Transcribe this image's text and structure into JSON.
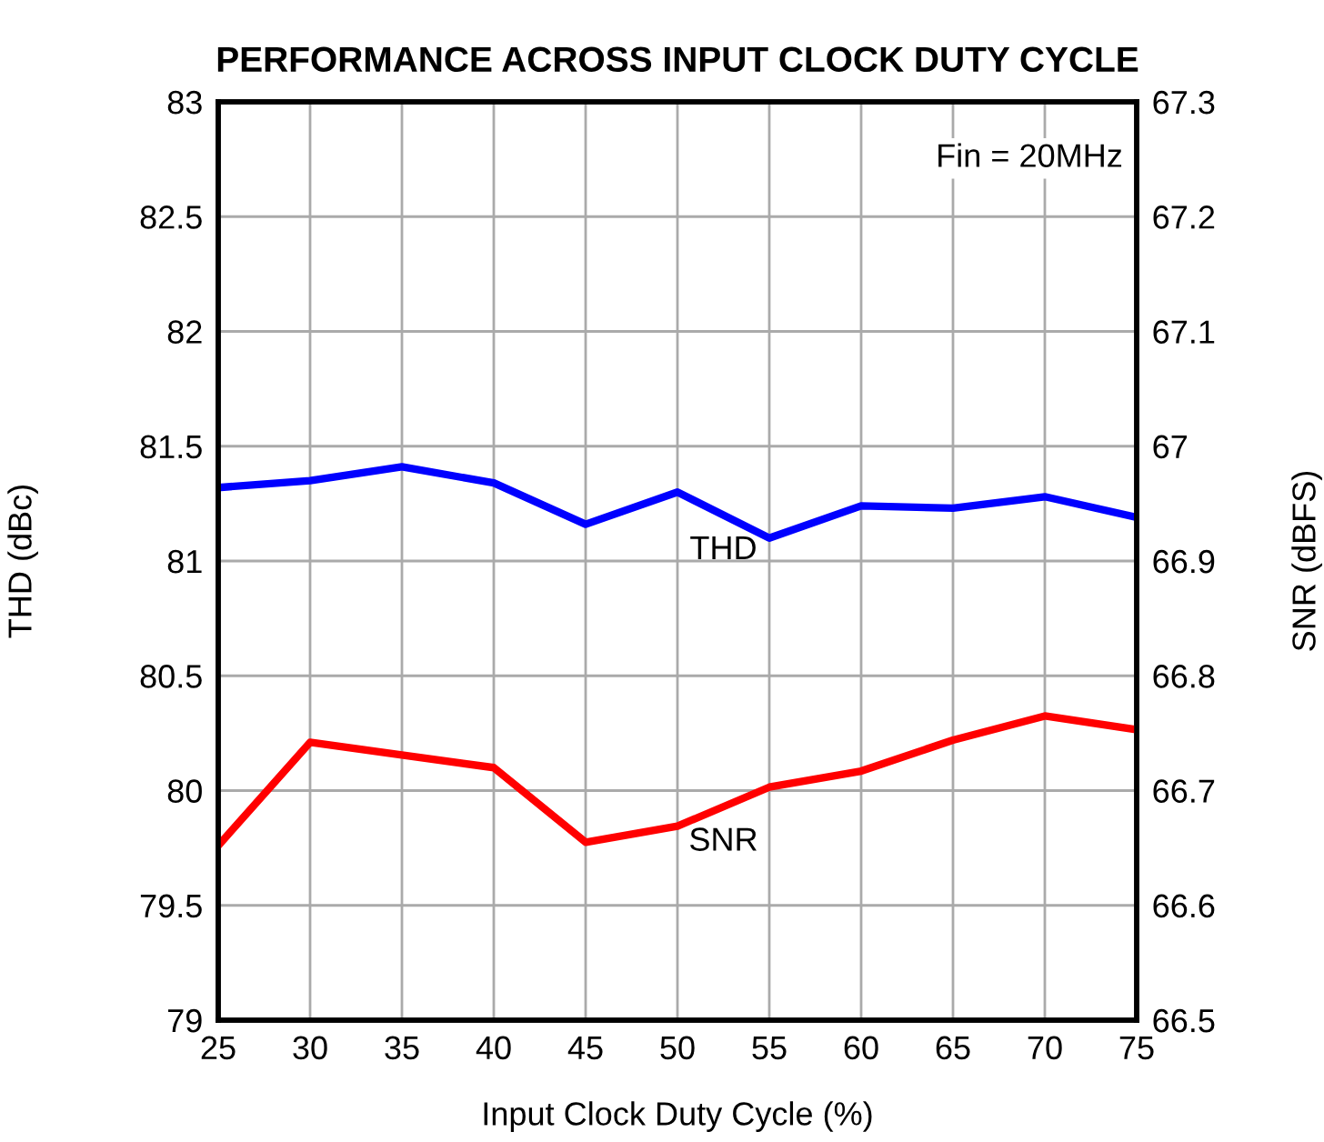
{
  "chart_data": {
    "type": "line",
    "title": "PERFORMANCE ACROSS INPUT CLOCK DUTY CYCLE",
    "xlabel": "Input Clock Duty Cycle (%)",
    "ylabel": "THD (dBc)",
    "y2label": "SNR (dBFS)",
    "x": [
      25,
      30,
      35,
      40,
      45,
      50,
      55,
      60,
      65,
      70,
      75
    ],
    "series": [
      {
        "name": "THD",
        "color": "#0000ff",
        "values": [
          81.32,
          81.35,
          81.41,
          81.34,
          81.16,
          81.3,
          81.1,
          81.24,
          81.23,
          81.28,
          81.19
        ]
      },
      {
        "name": "SNR",
        "color": "#ff0000",
        "axis": "y2",
        "values": [
          66.652,
          66.742,
          66.731,
          66.72,
          66.655,
          66.669,
          66.703,
          66.717,
          66.744,
          66.765,
          66.753
        ]
      }
    ],
    "annotations": [
      "Fin = 20MHz"
    ],
    "xlim": [
      25,
      75
    ],
    "xticks": [
      25,
      30,
      35,
      40,
      45,
      50,
      55,
      60,
      65,
      70,
      75
    ],
    "ylim": [
      79,
      83
    ],
    "yticks": [
      79,
      79.5,
      80,
      80.5,
      81,
      81.5,
      82,
      82.5,
      83
    ],
    "y2lim": [
      66.5,
      67.3
    ],
    "y2ticks": [
      66.5,
      66.6,
      66.7,
      66.8,
      66.9,
      67,
      67.1,
      67.2,
      67.3
    ],
    "grid": true,
    "legend": false,
    "line_style": "solid",
    "marker": "none"
  }
}
